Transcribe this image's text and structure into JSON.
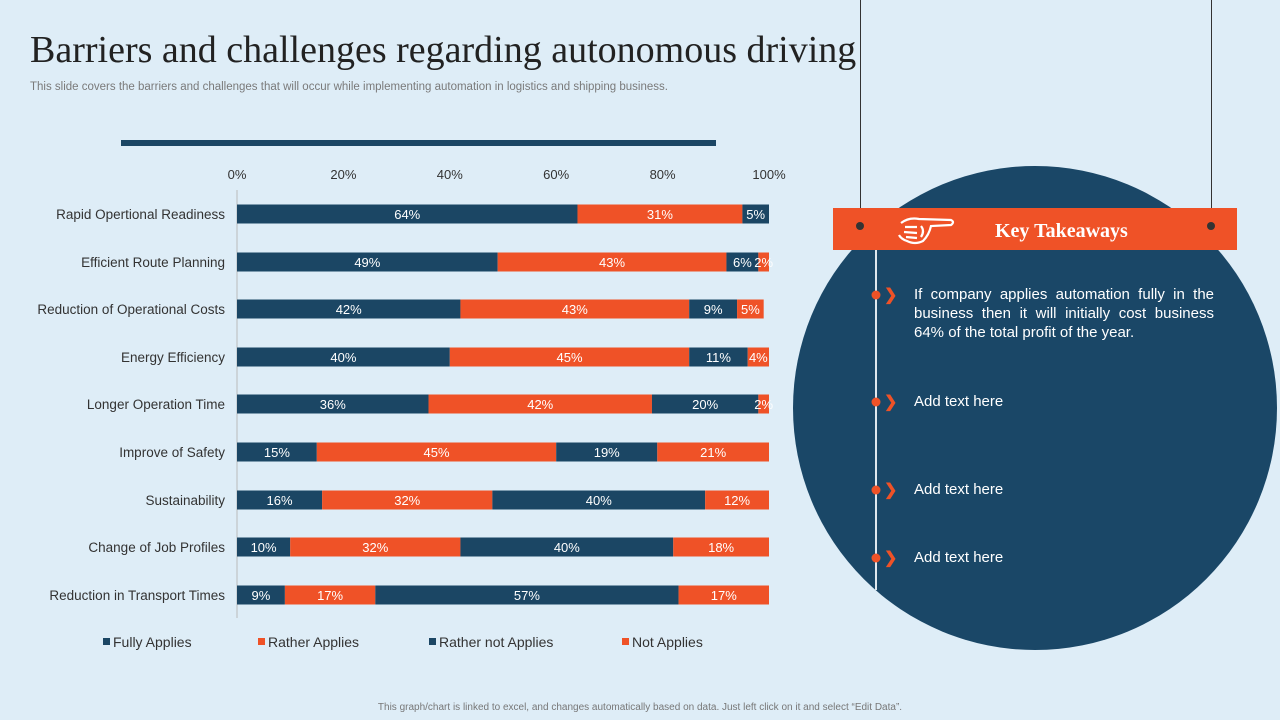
{
  "header": {
    "title": "Barriers and challenges regarding autonomous driving",
    "subtitle": "This slide covers the barriers and challenges that will occur while implementing automation in logistics and shipping business."
  },
  "chart_data": {
    "type": "bar",
    "orientation": "horizontal",
    "stacked": true,
    "percent": true,
    "categories": [
      "Rapid Opertional Readiness",
      "Efficient Route Planning",
      "Reduction of Operational Costs",
      "Energy Efficiency",
      "Longer Operation Time",
      "Improve of Safety",
      "Sustainability",
      "Change of Job Profiles",
      "Reduction in Transport Times"
    ],
    "series": [
      {
        "name": "Fully Applies",
        "color": "#1b4664",
        "values": [
          64,
          49,
          42,
          40,
          36,
          15,
          16,
          10,
          9
        ]
      },
      {
        "name": "Rather Applies",
        "color": "#ef5227",
        "values": [
          31,
          43,
          43,
          45,
          42,
          45,
          32,
          32,
          17
        ]
      },
      {
        "name": "Rather not Applies",
        "color": "#1b4664",
        "values": [
          5,
          6,
          9,
          11,
          20,
          19,
          40,
          40,
          57
        ]
      },
      {
        "name": "Not Applies",
        "color": "#ef5227",
        "values": [
          0,
          2,
          5,
          4,
          2,
          21,
          12,
          18,
          17
        ]
      }
    ],
    "xticks": [
      "0%",
      "20%",
      "40%",
      "60%",
      "80%",
      "100%"
    ],
    "xlim": [
      0,
      100
    ],
    "legend": "bottom",
    "grid": false
  },
  "takeaways": {
    "title": "Key Takeaways",
    "icon": "pointing-hand-icon",
    "items": [
      "If company applies automation fully in the business then it will initially cost business 64% of the total profit of the year.",
      "Add text here",
      "Add text here",
      "Add text here"
    ]
  },
  "footer": "This graph/chart is linked to excel, and changes automatically based on data. Just left click on it and select “Edit Data”."
}
